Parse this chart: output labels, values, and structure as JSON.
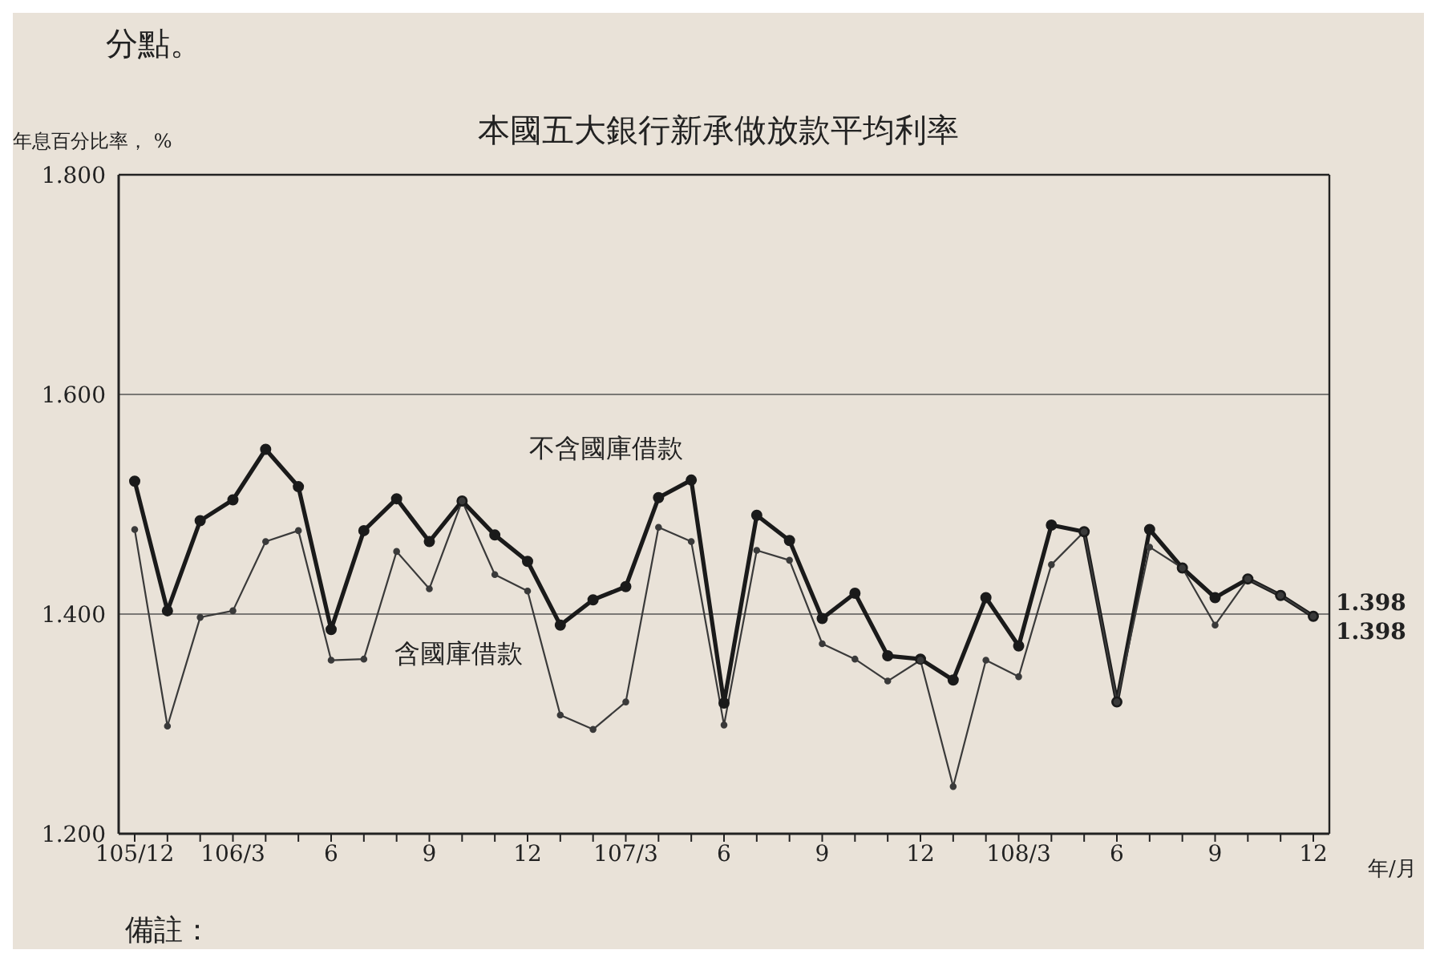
{
  "chart_data": {
    "type": "line",
    "title": "本國五大銀行新承做放款平均利率",
    "ylabel": "年息百分比率， %",
    "xlabel": "年/月",
    "annotations": [
      "分點。",
      "備註："
    ],
    "categories": [
      "105/12",
      null,
      null,
      "106/3",
      null,
      null,
      "6",
      null,
      null,
      "9",
      null,
      null,
      "12",
      null,
      null,
      "107/3",
      null,
      null,
      "6",
      null,
      null,
      "9",
      null,
      null,
      "12",
      null,
      null,
      "108/3",
      null,
      null,
      "6",
      null,
      null,
      "9",
      null,
      null,
      "12"
    ],
    "series": [
      {
        "name": "不含國庫借款",
        "color": "#1a1a1a",
        "values": [
          1.521,
          1.403,
          1.485,
          1.504,
          1.55,
          1.516,
          1.386,
          1.476,
          1.505,
          1.466,
          1.503,
          1.472,
          1.448,
          1.39,
          1.413,
          1.425,
          1.506,
          1.522,
          1.319,
          1.49,
          1.467,
          1.396,
          1.419,
          1.362,
          1.359,
          1.34,
          1.415,
          1.371,
          1.481,
          1.475,
          1.32,
          1.477,
          1.442,
          1.415,
          1.432,
          1.417,
          1.398
        ],
        "value_labels": [
          null,
          null,
          null,
          null,
          null,
          null,
          null,
          null,
          null,
          null,
          null,
          null,
          null,
          null,
          null,
          null,
          null,
          null,
          null,
          null,
          null,
          null,
          null,
          null,
          null,
          null,
          null,
          null,
          null,
          null,
          null,
          null,
          null,
          null,
          null,
          null,
          "1.398"
        ]
      },
      {
        "name": "含國庫借款",
        "color": "#3a3a3a",
        "values": [
          1.477,
          1.298,
          1.397,
          1.403,
          1.466,
          1.476,
          1.358,
          1.359,
          1.457,
          1.423,
          1.503,
          1.436,
          1.421,
          1.308,
          1.295,
          1.32,
          1.479,
          1.466,
          1.299,
          1.458,
          1.449,
          1.373,
          1.359,
          1.339,
          1.358,
          1.243,
          1.358,
          1.343,
          1.445,
          1.475,
          1.32,
          1.461,
          1.442,
          1.39,
          1.432,
          1.417,
          1.398
        ],
        "value_labels": [
          null,
          null,
          null,
          null,
          null,
          null,
          null,
          null,
          null,
          null,
          null,
          null,
          null,
          null,
          null,
          null,
          null,
          null,
          null,
          null,
          null,
          null,
          null,
          null,
          null,
          null,
          null,
          null,
          null,
          null,
          null,
          null,
          null,
          null,
          null,
          null,
          "1.398"
        ]
      }
    ],
    "ylim": [
      1.2,
      1.8
    ],
    "yticks": [
      {
        "value": 1.2,
        "label": "1.200"
      },
      {
        "value": 1.4,
        "label": "1.400"
      },
      {
        "value": 1.6,
        "label": "1.600"
      },
      {
        "value": 1.8,
        "label": "1.800"
      }
    ],
    "grid": "y",
    "marker": "circle",
    "line_style": "solid"
  }
}
